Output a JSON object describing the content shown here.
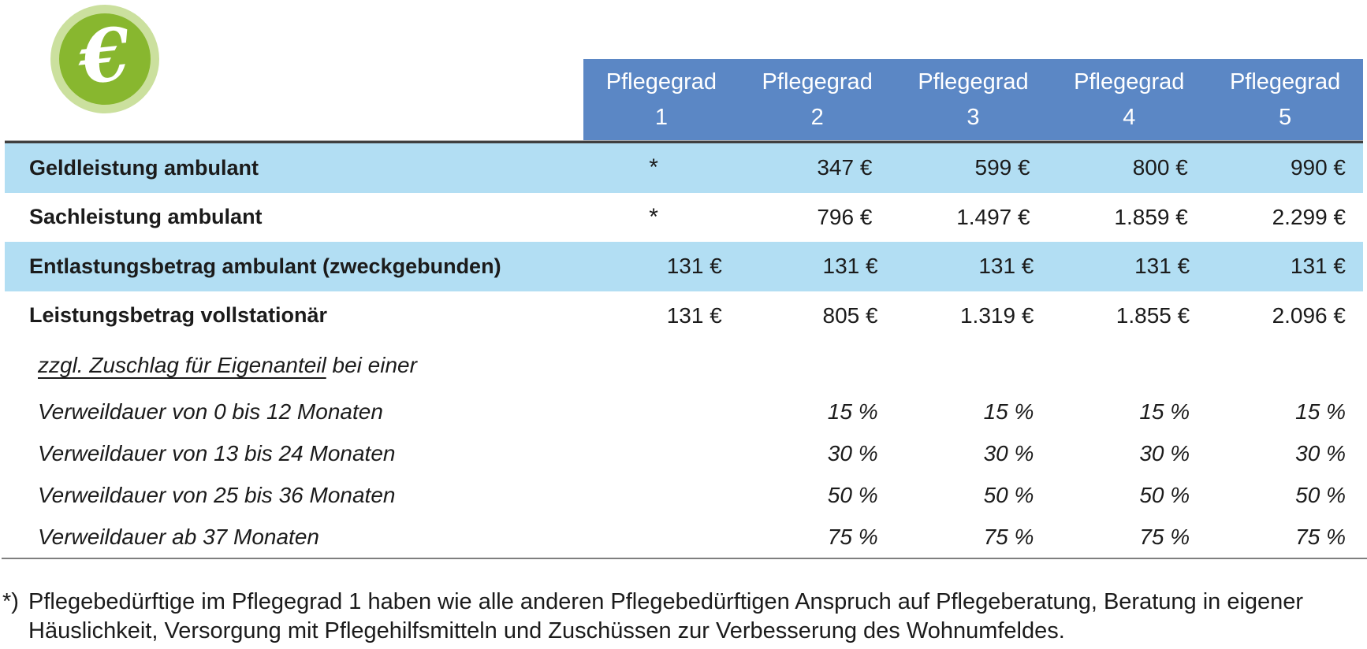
{
  "colors": {
    "header_blue": "#5b87c5",
    "row_blue": "#b2def3",
    "icon_green": "#88b72f",
    "icon_ring": "#cbe09e",
    "line_dark": "#3f3f3f",
    "line_gray": "#7f7f7f"
  },
  "icon": {
    "name": "euro-icon",
    "symbol": "€"
  },
  "table": {
    "header": {
      "title_word": "Pflegegrad",
      "grades": [
        "1",
        "2",
        "3",
        "4",
        "5"
      ]
    },
    "rows": [
      {
        "label": "Geldleistung ambulant",
        "kind": "main",
        "shaded": true,
        "center_first": true,
        "values": [
          "*",
          "347 €",
          "599 €",
          "800 €",
          "990 €"
        ]
      },
      {
        "label": "Sachleistung ambulant",
        "kind": "main",
        "shaded": false,
        "center_first": true,
        "values": [
          "*",
          "796 €",
          "1.497 €",
          "1.859 €",
          "2.299 €"
        ]
      },
      {
        "label": "Entlastungsbetrag ambulant (zweckgebunden)",
        "kind": "main",
        "shaded": true,
        "center_first": false,
        "values": [
          "131 €",
          "131 €",
          "131 €",
          "131 €",
          "131 €"
        ]
      },
      {
        "label": "Leistungsbetrag vollstationär",
        "kind": "main",
        "shaded": false,
        "center_first": false,
        "values": [
          "131 €",
          "805 €",
          "1.319 €",
          "1.855 €",
          "2.096 €"
        ]
      },
      {
        "label_underline": "zzgl. Zuschlag für Eigenanteil",
        "label_tail": " bei einer",
        "kind": "subhead",
        "shaded": false,
        "center_first": false,
        "values": [
          "",
          "",
          "",
          "",
          ""
        ]
      },
      {
        "label": "Verweildauer von 0 bis 12 Monaten",
        "kind": "sub",
        "shaded": false,
        "center_first": false,
        "values": [
          "",
          "15 %",
          "15 %",
          "15 %",
          "15 %"
        ]
      },
      {
        "label": "Verweildauer von 13 bis 24 Monaten",
        "kind": "sub",
        "shaded": false,
        "center_first": false,
        "values": [
          "",
          "30 %",
          "30 %",
          "30 %",
          "30 %"
        ]
      },
      {
        "label": "Verweildauer von 25 bis 36 Monaten",
        "kind": "sub",
        "shaded": false,
        "center_first": false,
        "values": [
          "",
          "50 %",
          "50 %",
          "50 %",
          "50 %"
        ]
      },
      {
        "label": "Verweildauer ab 37 Monaten",
        "kind": "sub",
        "shaded": false,
        "center_first": false,
        "values": [
          "",
          "75 %",
          "75 %",
          "75 %",
          "75 %"
        ]
      }
    ]
  },
  "footnote": {
    "marker": "*)",
    "line1": "Pflegebedürftige im Pflegegrad 1 haben wie alle anderen Pflegebedürftigen Anspruch auf Pflegeberatung, Beratung in eigener",
    "line2": "Häuslichkeit, Versorgung mit Pflegehilfsmitteln und Zuschüssen zur Verbesserung des Wohnumfeldes."
  }
}
